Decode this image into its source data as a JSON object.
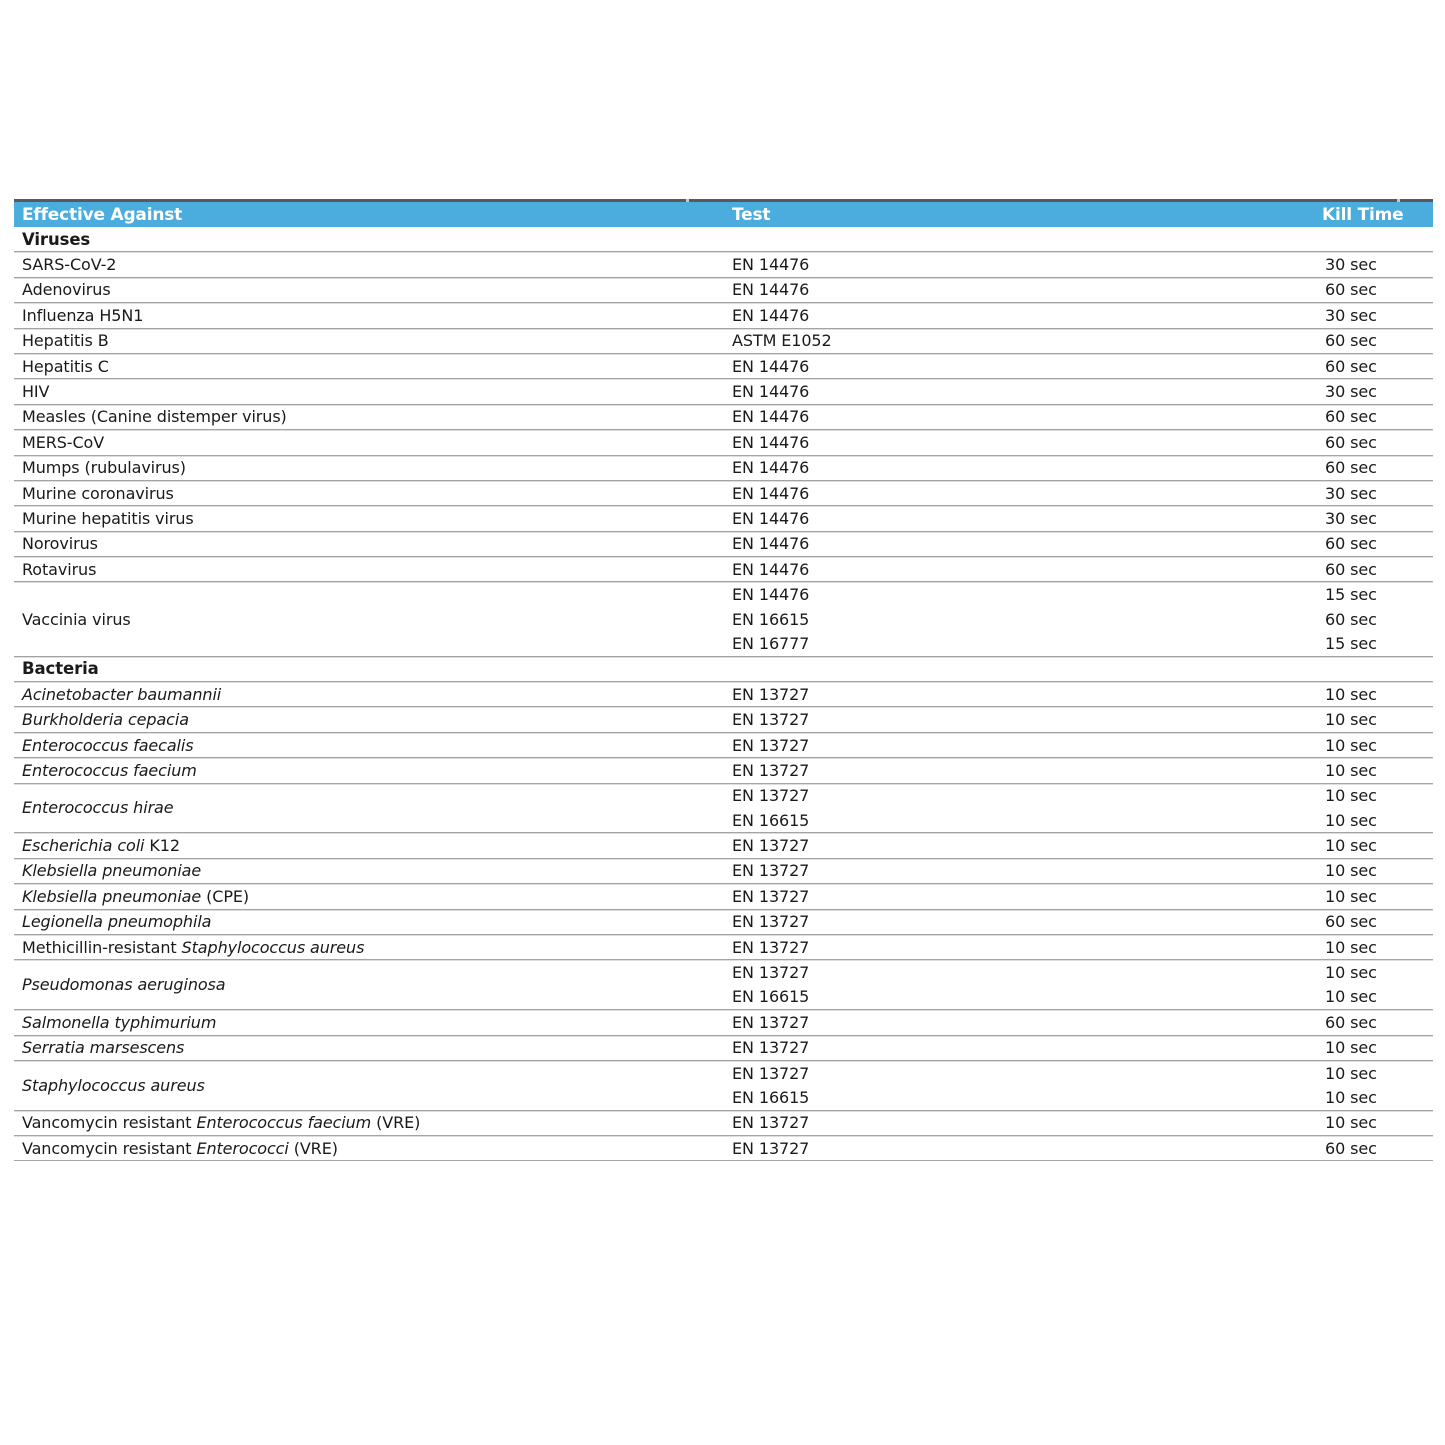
{
  "colors": {
    "header_bg": "#4BACDE",
    "header_text": "#FFFFFF",
    "top_border": "#59595B",
    "separator": "#A3A3A3",
    "separator_light": "#DEDEDE",
    "text": "#1A1A1A"
  },
  "table": {
    "columns": [
      "Effective Against",
      "Test",
      "Kill Time"
    ],
    "sections": [
      {
        "name": "Viruses",
        "rows": [
          {
            "name": [
              {
                "t": "SARS-CoV-2",
                "i": false
              }
            ],
            "entries": [
              {
                "test": "EN 14476",
                "time": "30 sec"
              }
            ]
          },
          {
            "name": [
              {
                "t": "Adenovirus",
                "i": false
              }
            ],
            "entries": [
              {
                "test": "EN 14476",
                "time": "60 sec"
              }
            ]
          },
          {
            "name": [
              {
                "t": "Influenza H5N1",
                "i": false
              }
            ],
            "entries": [
              {
                "test": "EN 14476",
                "time": "30 sec"
              }
            ]
          },
          {
            "name": [
              {
                "t": "Hepatitis B",
                "i": false
              }
            ],
            "entries": [
              {
                "test": "ASTM E1052",
                "time": "60 sec"
              }
            ]
          },
          {
            "name": [
              {
                "t": "Hepatitis C",
                "i": false
              }
            ],
            "entries": [
              {
                "test": "EN 14476",
                "time": "60 sec"
              }
            ]
          },
          {
            "name": [
              {
                "t": "HIV",
                "i": false
              }
            ],
            "entries": [
              {
                "test": "EN 14476",
                "time": "30 sec"
              }
            ]
          },
          {
            "name": [
              {
                "t": "Measles (Canine distemper virus)",
                "i": false
              }
            ],
            "entries": [
              {
                "test": "EN 14476",
                "time": "60 sec"
              }
            ]
          },
          {
            "name": [
              {
                "t": "MERS-CoV",
                "i": false
              }
            ],
            "entries": [
              {
                "test": "EN 14476",
                "time": "60 sec"
              }
            ]
          },
          {
            "name": [
              {
                "t": "Mumps (rubulavirus)",
                "i": false
              }
            ],
            "entries": [
              {
                "test": "EN 14476",
                "time": "60 sec"
              }
            ]
          },
          {
            "name": [
              {
                "t": "Murine coronavirus",
                "i": false
              }
            ],
            "entries": [
              {
                "test": "EN 14476",
                "time": "30 sec"
              }
            ]
          },
          {
            "name": [
              {
                "t": "Murine hepatitis virus",
                "i": false
              }
            ],
            "entries": [
              {
                "test": "EN 14476",
                "time": "30 sec"
              }
            ]
          },
          {
            "name": [
              {
                "t": "Norovirus",
                "i": false
              }
            ],
            "entries": [
              {
                "test": "EN 14476",
                "time": "60 sec"
              }
            ]
          },
          {
            "name": [
              {
                "t": "Rotavirus",
                "i": false
              }
            ],
            "entries": [
              {
                "test": "EN 14476",
                "time": "60 sec"
              }
            ]
          },
          {
            "name": [
              {
                "t": "Vaccinia virus",
                "i": false
              }
            ],
            "entries": [
              {
                "test": "EN 14476",
                "time": "15 sec"
              },
              {
                "test": "EN 16615",
                "time": "60 sec"
              },
              {
                "test": "EN 16777",
                "time": "15 sec"
              }
            ]
          }
        ]
      },
      {
        "name": "Bacteria",
        "rows": [
          {
            "name": [
              {
                "t": "Acinetobacter baumannii",
                "i": true
              }
            ],
            "entries": [
              {
                "test": "EN 13727",
                "time": "10 sec"
              }
            ]
          },
          {
            "name": [
              {
                "t": "Burkholderia cepacia",
                "i": true
              }
            ],
            "entries": [
              {
                "test": "EN 13727",
                "time": "10 sec"
              }
            ]
          },
          {
            "name": [
              {
                "t": "Enterococcus faecalis",
                "i": true
              }
            ],
            "entries": [
              {
                "test": "EN 13727",
                "time": "10 sec"
              }
            ]
          },
          {
            "name": [
              {
                "t": "Enterococcus faecium",
                "i": true
              }
            ],
            "entries": [
              {
                "test": "EN 13727",
                "time": "10 sec"
              }
            ]
          },
          {
            "name": [
              {
                "t": "Enterococcus hirae",
                "i": true
              }
            ],
            "entries": [
              {
                "test": "EN 13727",
                "time": "10 sec"
              },
              {
                "test": "EN 16615",
                "time": "10 sec"
              }
            ]
          },
          {
            "name": [
              {
                "t": "Escherichia coli",
                "i": true
              },
              {
                "t": " K12",
                "i": false
              }
            ],
            "entries": [
              {
                "test": "EN 13727",
                "time": "10 sec"
              }
            ]
          },
          {
            "name": [
              {
                "t": "Klebsiella pneumoniae",
                "i": true
              }
            ],
            "entries": [
              {
                "test": "EN 13727",
                "time": "10 sec"
              }
            ]
          },
          {
            "name": [
              {
                "t": "Klebsiella pneumoniae",
                "i": true
              },
              {
                "t": " (CPE)",
                "i": false
              }
            ],
            "entries": [
              {
                "test": "EN 13727",
                "time": "10 sec"
              }
            ]
          },
          {
            "name": [
              {
                "t": "Legionella pneumophila",
                "i": true
              }
            ],
            "entries": [
              {
                "test": "EN 13727",
                "time": "60 sec"
              }
            ]
          },
          {
            "name": [
              {
                "t": "Methicillin-resistant ",
                "i": false
              },
              {
                "t": "Staphylococcus aureus",
                "i": true
              }
            ],
            "entries": [
              {
                "test": "EN 13727",
                "time": "10 sec"
              }
            ]
          },
          {
            "name": [
              {
                "t": "Pseudomonas aeruginosa",
                "i": true
              }
            ],
            "entries": [
              {
                "test": "EN 13727",
                "time": "10 sec"
              },
              {
                "test": "EN 16615",
                "time": "10 sec"
              }
            ]
          },
          {
            "name": [
              {
                "t": "Salmonella typhimurium",
                "i": true
              }
            ],
            "entries": [
              {
                "test": "EN 13727",
                "time": "60 sec"
              }
            ]
          },
          {
            "name": [
              {
                "t": "Serratia marsescens",
                "i": true
              }
            ],
            "entries": [
              {
                "test": "EN 13727",
                "time": "10 sec"
              }
            ]
          },
          {
            "name": [
              {
                "t": "Staphylococcus aureus",
                "i": true
              }
            ],
            "entries": [
              {
                "test": "EN 13727",
                "time": "10 sec"
              },
              {
                "test": "EN 16615",
                "time": "10 sec"
              }
            ]
          },
          {
            "name": [
              {
                "t": "Vancomycin resistant ",
                "i": false
              },
              {
                "t": "Enterococcus faecium",
                "i": true
              },
              {
                "t": " (VRE)",
                "i": false
              }
            ],
            "entries": [
              {
                "test": "EN 13727",
                "time": "10 sec"
              }
            ]
          },
          {
            "name": [
              {
                "t": "Vancomycin resistant ",
                "i": false
              },
              {
                "t": "Enterococci",
                "i": true
              },
              {
                "t": " (VRE)",
                "i": false
              }
            ],
            "entries": [
              {
                "test": "EN 13727",
                "time": "60 sec"
              }
            ]
          }
        ]
      }
    ]
  }
}
